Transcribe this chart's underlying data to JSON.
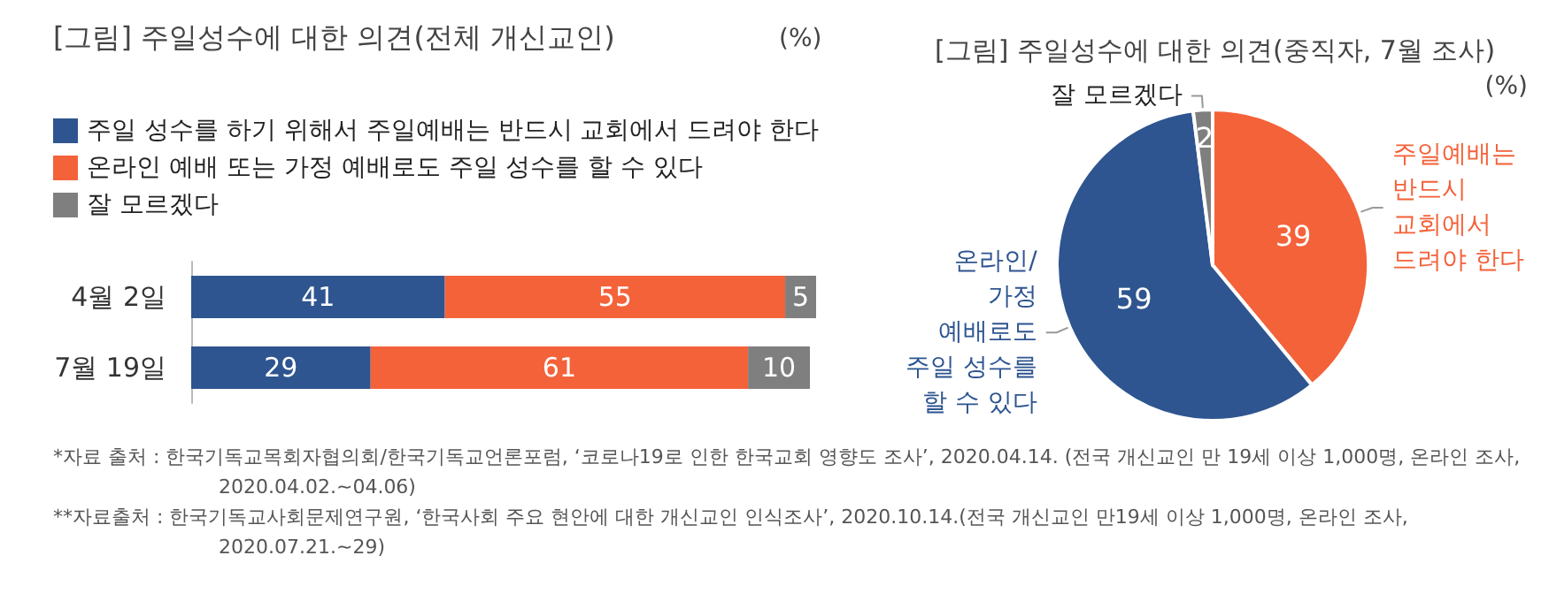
{
  "chart_data": [
    {
      "type": "bar",
      "title": "[그림] 주일성수에 대한 의견(전체 개신교인)",
      "orientation": "horizontal",
      "stacked": true,
      "categories": [
        "4월 2일",
        "7월 19일"
      ],
      "series": [
        {
          "name": "주일 성수를 하기 위해서 주일예배는 반드시 교회에서 드려야 한다",
          "color": "#2e5590",
          "values": [
            41,
            29
          ]
        },
        {
          "name": "온라인 예배 또는 가정 예배로도 주일 성수를 할 수 있다",
          "color": "#f4623a",
          "values": [
            55,
            61
          ]
        },
        {
          "name": "잘 모르겠다",
          "color": "#7f7f7f",
          "values": [
            5,
            10
          ]
        }
      ],
      "xlim": [
        0,
        101
      ],
      "tick_labels": "y",
      "data_labels": true,
      "legend": "top left",
      "annotations": [
        "(%)",
        "*자료 출처 : 한국기독교목회자협의회/한국기독교언론포럼, ‘코로나19로 인한 한국교회 영향도 조사’, 2020.04.14. (전국 개신교인 만 19세 이상 1,000명, 온라인 조사, 2020.04.02.~04.06)",
        "**자료출처 : 한국기독교사회문제연구원, ‘한국사회 주요 현안에 대한 개신교인 인식조사’, 2020.10.14.(전국 개신교인 만19세 이상 1,000명, 온라인 조사, 2020.07.21.~29)"
      ]
    },
    {
      "type": "pie",
      "title": "[그림] 주일성수에 대한 의견(중직자, 7월 조사)",
      "categories": [
        "주일예배는 반드시 교회에서 드려야 한다",
        "온라인/ 가정 예배로도 주일 성수를 할 수 있다",
        "잘 모르겠다"
      ],
      "values": [
        39,
        59,
        2
      ],
      "colors": [
        "#f4623a",
        "#2e5590",
        "#7f7f7f"
      ],
      "data_labels": true,
      "annotations": [
        "(%)"
      ]
    }
  ]
}
